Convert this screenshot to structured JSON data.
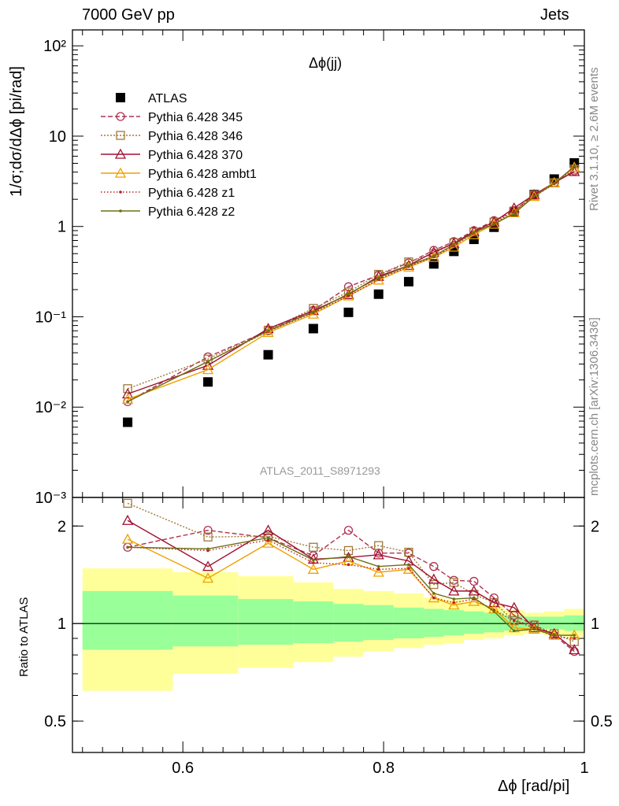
{
  "header": {
    "energy_label": "7000 GeV pp",
    "process_label": "Jets",
    "rivet_label": "Rivet 3.1.10, ≥ 2.6M events",
    "site_label": "mcplots.cern.ch [arXiv:1306.3436]"
  },
  "chart_data": [
    {
      "type": "line",
      "title": "Δϕ(jj)",
      "analysis_label": "ATLAS_2011_S8971293",
      "ylabel": "1/σ;dσ/dΔϕ [pi/rad]",
      "xlabel": "Δϕ [rad/pi]",
      "yscale": "log",
      "xlim": [
        0.49,
        1.0
      ],
      "ylim": [
        0.001,
        150
      ],
      "yticks": [
        0.001,
        0.01,
        0.1,
        1,
        10,
        100
      ],
      "ytick_labels": [
        "10⁻³",
        "10⁻²",
        "10⁻¹",
        "1",
        "10",
        "10²"
      ],
      "legend_position": "top-left",
      "x": [
        0.545,
        0.625,
        0.685,
        0.73,
        0.765,
        0.795,
        0.825,
        0.85,
        0.87,
        0.89,
        0.91,
        0.93,
        0.95,
        0.97,
        0.99
      ],
      "series": [
        {
          "name": "ATLAS",
          "color": "#000000",
          "marker": "square-filled",
          "values": [
            0.0068,
            0.019,
            0.038,
            0.074,
            0.112,
            0.178,
            0.245,
            0.385,
            0.53,
            0.72,
            0.98,
            1.45,
            2.25,
            3.35,
            5.05
          ]
        },
        {
          "name": "Pythia 6.428 345",
          "color": "#b03050",
          "marker": "circle-open",
          "dash": "6,3",
          "values": [
            0.0115,
            0.036,
            0.07,
            0.118,
            0.215,
            0.29,
            0.395,
            0.545,
            0.68,
            0.9,
            1.16,
            1.5,
            2.22,
            3.05,
            4.12
          ]
        },
        {
          "name": "Pythia 6.428 346",
          "color": "#a07838",
          "marker": "square-open",
          "dash": "2,2",
          "values": [
            0.016,
            0.034,
            0.071,
            0.124,
            0.188,
            0.295,
            0.405,
            0.5,
            0.66,
            0.87,
            1.12,
            1.48,
            2.22,
            3.05,
            4.3
          ]
        },
        {
          "name": "Pythia 6.428 370",
          "color": "#a01030",
          "marker": "triangle-open",
          "values": [
            0.014,
            0.029,
            0.074,
            0.117,
            0.176,
            0.28,
            0.37,
            0.52,
            0.65,
            0.88,
            1.12,
            1.6,
            2.25,
            3.05,
            4.05
          ]
        },
        {
          "name": "Pythia 6.428 ambt1",
          "color": "#f0a000",
          "marker": "triangle-open",
          "values": [
            0.0122,
            0.026,
            0.067,
            0.107,
            0.17,
            0.255,
            0.355,
            0.455,
            0.59,
            0.81,
            1.06,
            1.42,
            2.15,
            3.05,
            4.52
          ]
        },
        {
          "name": "Pythia 6.428 z1",
          "color": "#c02020",
          "marker": "dot",
          "dash": "1.5,2.5",
          "values": [
            0.0115,
            0.032,
            0.069,
            0.111,
            0.17,
            0.26,
            0.36,
            0.46,
            0.61,
            0.85,
            1.08,
            1.48,
            2.15,
            2.95,
            4.55
          ]
        },
        {
          "name": "Pythia 6.428 z2",
          "color": "#6b7010",
          "marker": "dot",
          "values": [
            0.0115,
            0.032,
            0.07,
            0.113,
            0.18,
            0.27,
            0.37,
            0.47,
            0.63,
            0.86,
            1.06,
            1.39,
            2.15,
            3.0,
            4.62
          ]
        }
      ]
    },
    {
      "type": "line",
      "ylabel": "Ratio to ATLAS",
      "xlabel": "Δϕ [rad/pi]",
      "yscale": "log",
      "xlim": [
        0.49,
        1.0
      ],
      "ylim": [
        0.4,
        2.45
      ],
      "yticks": [
        0.5,
        1,
        2
      ],
      "ytick_labels": [
        "0.5",
        "1",
        "2"
      ],
      "xticks": [
        0.6,
        0.8,
        1.0
      ],
      "xtick_labels": [
        "0.6",
        "0.8",
        "1"
      ],
      "reference_line": 1,
      "band_colors": {
        "inner": "#99ff99",
        "outer": "#ffff99"
      },
      "bands": [
        {
          "x0": 0.5,
          "x1": 0.59,
          "inner": [
            0.83,
            1.26
          ],
          "outer": [
            0.62,
            1.48
          ]
        },
        {
          "x0": 0.59,
          "x1": 0.655,
          "inner": [
            0.85,
            1.22
          ],
          "outer": [
            0.7,
            1.44
          ]
        },
        {
          "x0": 0.655,
          "x1": 0.71,
          "inner": [
            0.86,
            1.19
          ],
          "outer": [
            0.73,
            1.4
          ]
        },
        {
          "x0": 0.71,
          "x1": 0.75,
          "inner": [
            0.87,
            1.17
          ],
          "outer": [
            0.76,
            1.34
          ]
        },
        {
          "x0": 0.75,
          "x1": 0.78,
          "inner": [
            0.88,
            1.15
          ],
          "outer": [
            0.79,
            1.28
          ]
        },
        {
          "x0": 0.78,
          "x1": 0.81,
          "inner": [
            0.89,
            1.14
          ],
          "outer": [
            0.82,
            1.26
          ]
        },
        {
          "x0": 0.81,
          "x1": 0.84,
          "inner": [
            0.9,
            1.12
          ],
          "outer": [
            0.84,
            1.24
          ]
        },
        {
          "x0": 0.84,
          "x1": 0.86,
          "inner": [
            0.91,
            1.11
          ],
          "outer": [
            0.86,
            1.2
          ]
        },
        {
          "x0": 0.86,
          "x1": 0.88,
          "inner": [
            0.92,
            1.1
          ],
          "outer": [
            0.87,
            1.18
          ]
        },
        {
          "x0": 0.88,
          "x1": 0.9,
          "inner": [
            0.93,
            1.09
          ],
          "outer": [
            0.89,
            1.16
          ]
        },
        {
          "x0": 0.9,
          "x1": 0.92,
          "inner": [
            0.94,
            1.08
          ],
          "outer": [
            0.9,
            1.14
          ]
        },
        {
          "x0": 0.92,
          "x1": 0.94,
          "inner": [
            0.95,
            1.06
          ],
          "outer": [
            0.92,
            1.1
          ]
        },
        {
          "x0": 0.94,
          "x1": 0.96,
          "inner": [
            0.96,
            1.05
          ],
          "outer": [
            0.93,
            1.08
          ]
        },
        {
          "x0": 0.96,
          "x1": 0.98,
          "inner": [
            0.96,
            1.05
          ],
          "outer": [
            0.92,
            1.09
          ]
        },
        {
          "x0": 0.98,
          "x1": 1.0,
          "inner": [
            0.95,
            1.06
          ],
          "outer": [
            0.91,
            1.11
          ]
        }
      ],
      "x": [
        0.545,
        0.625,
        0.685,
        0.73,
        0.765,
        0.795,
        0.825,
        0.85,
        0.87,
        0.89,
        0.91,
        0.93,
        0.95,
        0.97,
        0.99
      ],
      "series": [
        {
          "name": "Pythia 6.428 345",
          "values": [
            1.72,
            1.94,
            1.84,
            1.62,
            1.94,
            1.65,
            1.65,
            1.5,
            1.36,
            1.35,
            1.2,
            1.06,
            0.99,
            0.92,
            0.82
          ]
        },
        {
          "name": "Pythia 6.428 346",
          "values": [
            2.35,
            1.85,
            1.86,
            1.72,
            1.68,
            1.74,
            1.66,
            1.32,
            1.34,
            1.23,
            1.16,
            1.02,
            0.99,
            0.93,
            0.88
          ]
        },
        {
          "name": "Pythia 6.428 370",
          "values": [
            2.08,
            1.5,
            1.94,
            1.58,
            1.6,
            1.63,
            1.56,
            1.37,
            1.26,
            1.26,
            1.16,
            1.12,
            0.97,
            0.93,
            0.83
          ]
        },
        {
          "name": "Pythia 6.428 ambt1",
          "values": [
            1.82,
            1.38,
            1.77,
            1.47,
            1.56,
            1.44,
            1.47,
            1.2,
            1.14,
            1.17,
            1.11,
            0.97,
            0.96,
            0.92,
            0.92
          ]
        },
        {
          "name": "Pythia 6.428 z1",
          "values": [
            1.72,
            1.68,
            1.81,
            1.54,
            1.52,
            1.47,
            1.48,
            1.2,
            1.16,
            1.19,
            1.1,
            1.02,
            0.97,
            0.91,
            0.9
          ]
        },
        {
          "name": "Pythia 6.428 z2",
          "values": [
            1.72,
            1.7,
            1.84,
            1.57,
            1.61,
            1.5,
            1.52,
            1.24,
            1.19,
            1.2,
            1.09,
            0.95,
            0.96,
            0.92,
            0.92
          ]
        }
      ]
    }
  ]
}
